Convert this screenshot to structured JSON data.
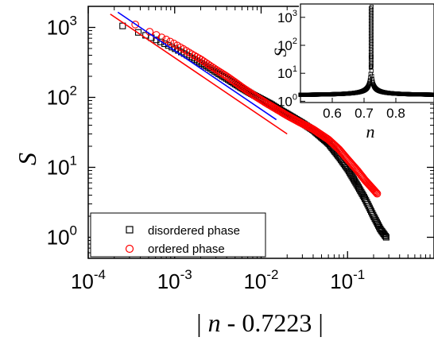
{
  "chart_data": [
    {
      "type": "scatter",
      "xscale": "log",
      "yscale": "log",
      "xlabel_math": "n",
      "xlabel_prefix": "| ",
      "xlabel_suffix": " - 0.7223 |",
      "ylabel": "S",
      "xlim": [
        0.0001,
        1
      ],
      "ylim": [
        0.5,
        2000
      ],
      "x_ticks": [
        {
          "base": "10",
          "exp": "-4",
          "value": 0.0001
        },
        {
          "base": "10",
          "exp": "-3",
          "value": 0.001
        },
        {
          "base": "10",
          "exp": "-2",
          "value": 0.01
        },
        {
          "base": "10",
          "exp": "-1",
          "value": 0.1
        }
      ],
      "y_ticks": [
        {
          "base": "10",
          "exp": "0",
          "value": 1
        },
        {
          "base": "10",
          "exp": "1",
          "value": 10
        },
        {
          "base": "10",
          "exp": "2",
          "value": 100
        },
        {
          "base": "10",
          "exp": "3",
          "value": 1000
        }
      ],
      "legend": {
        "placement": "bottom-left",
        "entries": [
          {
            "label": "disordered phase",
            "marker": "square",
            "color": "#000000"
          },
          {
            "label": "ordered phase",
            "marker": "circle",
            "color": "#ff0000"
          }
        ]
      },
      "series": [
        {
          "name": "disordered phase",
          "marker": "square",
          "color": "#000000",
          "x_range": [
            0.00025,
            0.28
          ],
          "points": [
            [
              0.00025,
              1050
            ],
            [
              0.0003,
              960
            ],
            [
              0.00035,
              880
            ],
            [
              0.0004,
              830
            ],
            [
              0.0005,
              740
            ],
            [
              0.0006,
              670
            ],
            [
              0.0008,
              570
            ],
            [
              0.001,
              500
            ],
            [
              0.0013,
              420
            ],
            [
              0.0016,
              365
            ],
            [
              0.002,
              310
            ],
            [
              0.0025,
              265
            ],
            [
              0.003,
              230
            ],
            [
              0.004,
              185
            ],
            [
              0.005,
              155
            ],
            [
              0.006,
              135
            ],
            [
              0.008,
              110
            ],
            [
              0.01,
              95
            ],
            [
              0.013,
              80
            ],
            [
              0.016,
              68
            ],
            [
              0.02,
              58
            ],
            [
              0.03,
              43
            ],
            [
              0.04,
              34
            ],
            [
              0.06,
              22
            ],
            [
              0.08,
              14
            ],
            [
              0.1,
              9.5
            ],
            [
              0.13,
              5.5
            ],
            [
              0.16,
              3.5
            ],
            [
              0.2,
              2.0
            ],
            [
              0.24,
              1.3
            ],
            [
              0.28,
              1.0
            ]
          ]
        },
        {
          "name": "ordered phase",
          "marker": "circle",
          "color": "#ff0000",
          "x_range": [
            0.00035,
            0.22
          ],
          "points": [
            [
              0.00035,
              1100
            ],
            [
              0.0004,
              1000
            ],
            [
              0.0005,
              880
            ],
            [
              0.0006,
              790
            ],
            [
              0.0008,
              670
            ],
            [
              0.001,
              580
            ],
            [
              0.0013,
              480
            ],
            [
              0.0016,
              410
            ],
            [
              0.002,
              350
            ],
            [
              0.0025,
              290
            ],
            [
              0.003,
              250
            ],
            [
              0.004,
              200
            ],
            [
              0.005,
              165
            ],
            [
              0.006,
              140
            ],
            [
              0.008,
              110
            ],
            [
              0.01,
              92
            ],
            [
              0.012,
              80
            ],
            [
              0.015,
              68
            ],
            [
              0.02,
              55
            ],
            [
              0.03,
              42
            ],
            [
              0.04,
              35
            ],
            [
              0.06,
              25
            ],
            [
              0.08,
              18
            ],
            [
              0.1,
              13
            ],
            [
              0.13,
              9
            ],
            [
              0.16,
              6.5
            ],
            [
              0.2,
              4.8
            ],
            [
              0.22,
              4.2
            ]
          ]
        }
      ],
      "fit_lines": [
        {
          "color": "#ff0000",
          "x": [
            0.00018,
            0.02
          ],
          "y": [
            1550,
            30
          ]
        },
        {
          "color": "#0000ff",
          "x": [
            0.00022,
            0.015
          ],
          "y": [
            1650,
            48
          ]
        }
      ]
    },
    {
      "type": "scatter",
      "inset": true,
      "xlabel": "n",
      "ylabel": "S",
      "xlim": [
        0.5,
        0.92
      ],
      "ylim": [
        0.9,
        3000
      ],
      "yscale": "log",
      "x_ticks": [
        "0.6",
        "0.7",
        "0.8"
      ],
      "y_ticks": [
        {
          "base": "10",
          "exp": "0",
          "value": 1
        },
        {
          "base": "10",
          "exp": "1",
          "value": 10
        },
        {
          "base": "10",
          "exp": "2",
          "value": 100
        },
        {
          "base": "10",
          "exp": "3",
          "value": 1000
        }
      ],
      "peak_x": 0.7223,
      "series": [
        {
          "marker": "square",
          "color": "#000000",
          "shape": "cusp peaked at n = 0.7223, S ≈ 2 far from peak up to ≈ 2500 at peak"
        }
      ]
    }
  ]
}
